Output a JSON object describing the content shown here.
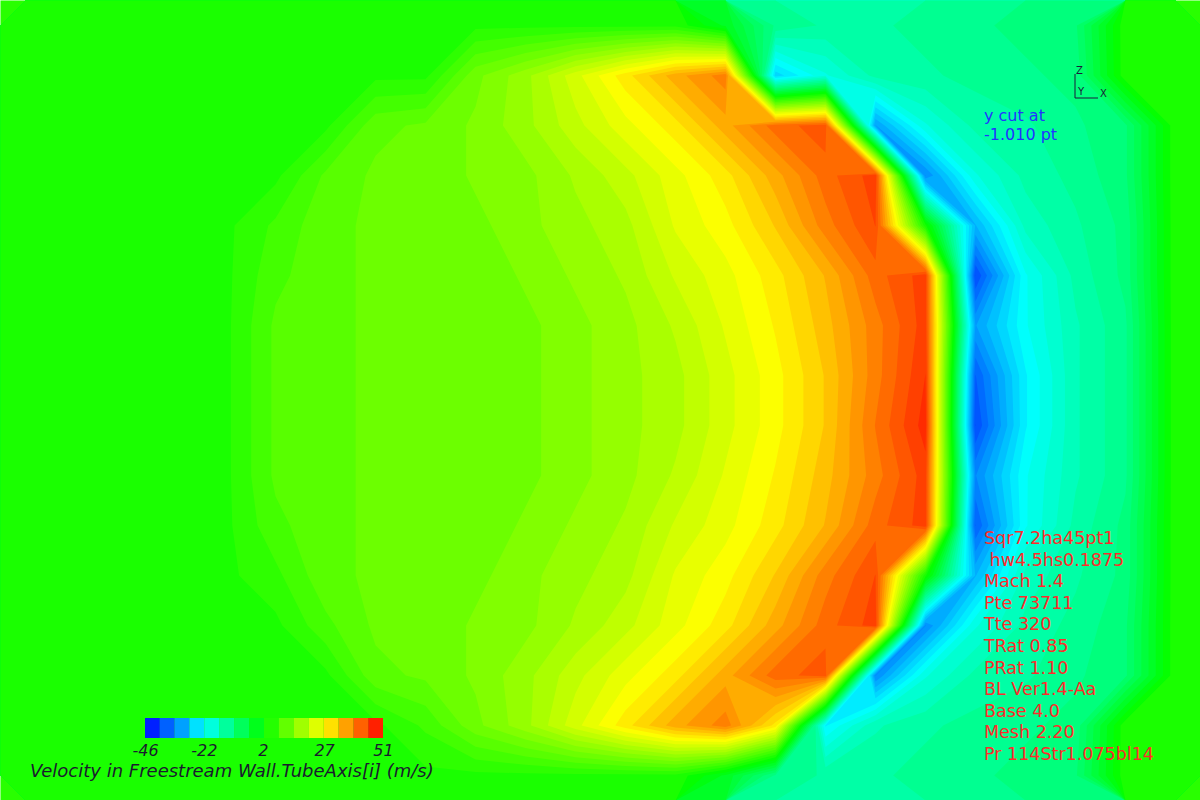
{
  "chart_data": {
    "type": "heatmap",
    "tick_labels": false,
    "annotations": {
      "axes": [
        "Z",
        "Y",
        "X"
      ],
      "cut": [
        "y cut at",
        "-1.010 pt"
      ],
      "case": [
        "Sqr7.2ha45pt1",
        " hw4.5hs0.1875",
        "Mach 1.4",
        "Pte 73711",
        "Tte 320",
        "TRat 0.85",
        "PRat 1.10",
        "BL Ver1.4-Aa",
        "Base 4.0",
        "Mesh 2.20",
        "Pr 114Str1.075bl14"
      ]
    },
    "colorbar": {
      "label": "Velocity in Freestream Wall.TubeAxis[i] (m/s)",
      "range": [
        -46,
        51
      ],
      "ticks": [
        -46,
        -22,
        2,
        27,
        51
      ]
    },
    "cells": [
      [
        6,
        6,
        6,
        6,
        6,
        6,
        6,
        6,
        6,
        6,
        6,
        6,
        6,
        6,
        0,
        -10,
        -12,
        -12,
        -11,
        -10,
        -9,
        -8,
        6,
        6
      ],
      [
        6,
        6,
        6,
        6,
        6,
        6,
        6,
        6,
        6,
        14,
        18,
        24,
        30,
        36,
        40,
        -25,
        -18,
        -13,
        -12,
        -11,
        -10,
        -9,
        6,
        6
      ],
      [
        6,
        6,
        6,
        6,
        6,
        6,
        6,
        12,
        13,
        15,
        18,
        22,
        26,
        30,
        36,
        42,
        44,
        -30,
        -18,
        -13,
        -12,
        -10,
        -8,
        6
      ],
      [
        6,
        6,
        6,
        6,
        6,
        6,
        11,
        13,
        13,
        15,
        16,
        19,
        22,
        26,
        30,
        36,
        42,
        46,
        -32,
        -18,
        -13,
        -11,
        -8,
        6
      ],
      [
        6,
        6,
        6,
        6,
        6,
        9,
        12,
        13,
        13,
        14,
        16,
        18,
        20,
        25,
        28,
        33,
        40,
        45,
        5,
        -28,
        -15,
        -12,
        -9,
        6
      ],
      [
        6,
        6,
        6,
        6,
        6,
        10,
        12,
        13,
        13,
        13,
        15,
        17,
        19,
        23,
        26,
        30,
        35,
        42,
        46,
        -38,
        -20,
        -13,
        -9,
        6
      ],
      [
        6,
        6,
        6,
        6,
        6,
        11,
        12,
        13,
        13,
        13,
        14,
        16,
        18,
        21,
        25,
        29,
        34,
        40,
        46,
        -30,
        -20,
        -14,
        -10,
        6
      ],
      [
        6,
        6,
        6,
        6,
        6,
        11,
        12,
        13,
        13,
        13,
        14,
        16,
        18,
        20,
        24,
        28,
        33,
        40,
        47,
        -36,
        -22,
        -14,
        -10,
        6
      ],
      [
        6,
        6,
        6,
        6,
        6,
        11,
        12,
        13,
        13,
        13,
        14,
        16,
        18,
        20,
        24,
        28,
        33,
        41,
        48,
        -38,
        -22,
        -14,
        -10,
        6
      ],
      [
        6,
        6,
        6,
        6,
        6,
        11,
        12,
        13,
        13,
        13,
        14,
        16,
        18,
        21,
        25,
        29,
        34,
        40,
        46,
        -32,
        -20,
        -14,
        -10,
        6
      ],
      [
        6,
        6,
        6,
        6,
        6,
        10,
        12,
        13,
        13,
        13,
        15,
        17,
        19,
        23,
        26,
        30,
        35,
        42,
        46,
        -36,
        -20,
        -13,
        -9,
        6
      ],
      [
        6,
        6,
        6,
        6,
        6,
        8,
        12,
        13,
        13,
        14,
        16,
        18,
        20,
        25,
        28,
        33,
        40,
        45,
        5,
        -28,
        -15,
        -12,
        -9,
        6
      ],
      [
        6,
        6,
        6,
        6,
        6,
        6,
        10,
        13,
        13,
        15,
        16,
        19,
        22,
        26,
        30,
        36,
        42,
        46,
        -32,
        -18,
        -13,
        -11,
        -8,
        6
      ],
      [
        6,
        6,
        6,
        6,
        6,
        6,
        6,
        12,
        13,
        15,
        18,
        22,
        26,
        30,
        36,
        42,
        44,
        -32,
        -18,
        -13,
        -12,
        -10,
        -8,
        6
      ],
      [
        6,
        6,
        6,
        6,
        6,
        6,
        6,
        6,
        9,
        14,
        18,
        24,
        30,
        36,
        40,
        30,
        -22,
        -14,
        -12,
        -11,
        -10,
        -9,
        6,
        6
      ],
      [
        6,
        6,
        6,
        6,
        6,
        6,
        6,
        6,
        6,
        6,
        6,
        6,
        6,
        6,
        0,
        -10,
        -12,
        -12,
        -11,
        -10,
        -9,
        -8,
        6,
        6
      ]
    ]
  }
}
